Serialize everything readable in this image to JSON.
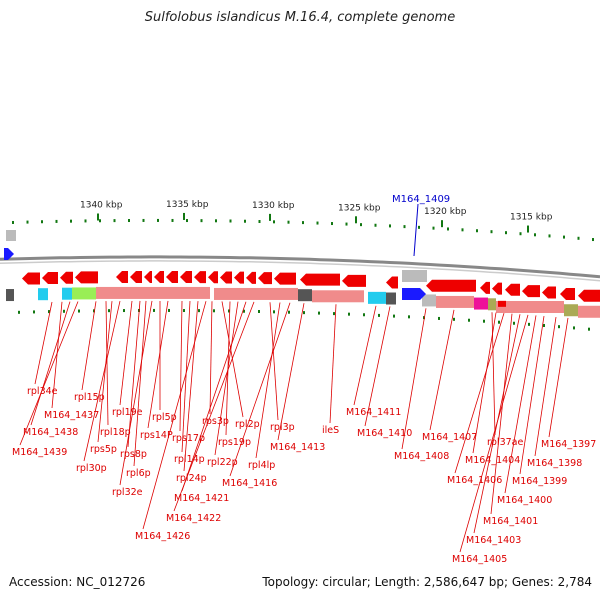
{
  "title": "Sulfolobus islandicus M.16.4, complete genome",
  "highlight_gene": "M164_1409",
  "ticks": [
    {
      "label": "1340 kbp"
    },
    {
      "label": "1335 kbp"
    },
    {
      "label": "1330 kbp"
    },
    {
      "label": "1325 kbp"
    },
    {
      "label": "1320 kbp"
    },
    {
      "label": "1315 kbp"
    }
  ],
  "gene_labels": [
    "rpl34e",
    "M164_1437",
    "M164_1438",
    "M164_1439",
    "rpl15p",
    "rpl18p",
    "rps5p",
    "rpl30p",
    "rpl19e",
    "rps8p",
    "rpl6p",
    "rpl32e",
    "rpl5p",
    "rps14P",
    "rps17p",
    "rpl14p",
    "rpl24p",
    "M164_1426",
    "rps3p",
    "rpl2p",
    "rps19p",
    "rpl22p",
    "M164_1421",
    "M164_1422",
    "rpl3p",
    "rpl4lp",
    "M164_1416",
    "M164_1413",
    "ileS",
    "M164_1411",
    "M164_1410",
    "M164_1408",
    "M164_1407",
    "rpl37ae",
    "M164_1404",
    "M164_1406",
    "M164_1401",
    "M164_1403",
    "M164_1405",
    "M164_1400",
    "M164_1399",
    "M164_1398",
    "M164_1397"
  ],
  "colors": {
    "gene_forward": "#1a1aff",
    "gene_reverse": "#ee0000",
    "label": "#dd0000",
    "highlight": "#0000cc",
    "tick": "#117711",
    "tick_label": "#222222",
    "backbone": "#888888",
    "track_pink": "#f08b8b",
    "track_gray": "#bbbbbb",
    "track_dark": "#555555",
    "track_cyan": "#22ccee",
    "track_green": "#99ee55",
    "track_magenta": "#ee1199",
    "track_olive": "#aaaa55"
  },
  "footer": {
    "accession": "Accession: NC_012726",
    "summary": "Topology: circular; Length: 2,586,647 bp; Genes: 2,784"
  }
}
